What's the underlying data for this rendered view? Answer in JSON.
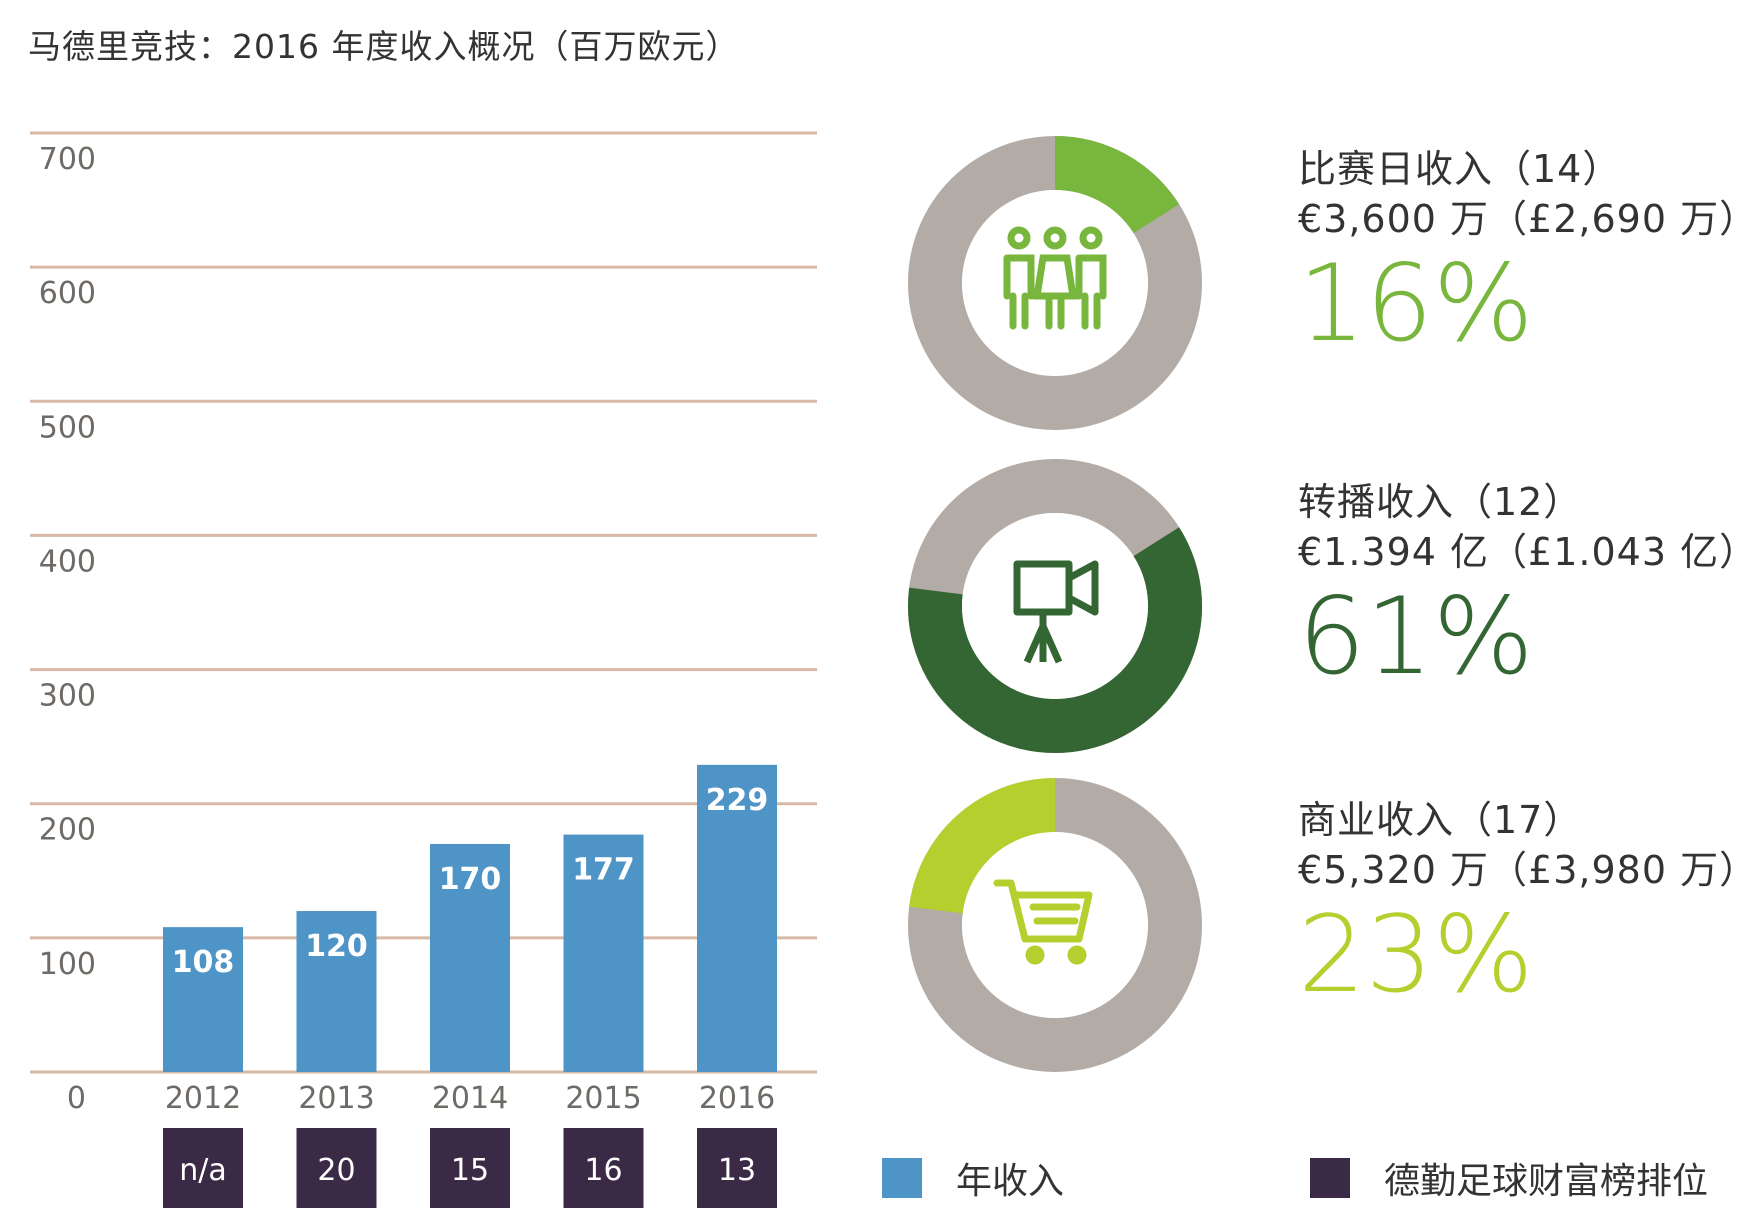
{
  "title": "马德里竞技：2016 年度收入概况（百万欧元）",
  "colors": {
    "bar": "#4f94c6",
    "rank_box": "#3b2a45",
    "grid": "#d7b9a5",
    "donut_rest": "#b3aba6",
    "matchday": "#78b63d",
    "broadcast": "#336633",
    "commercial": "#b5cf2e"
  },
  "chart_data": {
    "type": "bar",
    "title": "马德里竞技：2016 年度收入概况（百万欧元）",
    "categories": [
      "2012",
      "2013",
      "2014",
      "2015",
      "2016"
    ],
    "values": [
      108,
      120,
      170,
      177,
      229
    ],
    "ylim": [
      0,
      700
    ],
    "yticks": [
      "0",
      "100",
      "200",
      "300",
      "400",
      "500",
      "600",
      "700"
    ],
    "ranks": [
      "n/a",
      "20",
      "15",
      "16",
      "13"
    ],
    "grid": true,
    "legend_position": "bottom"
  },
  "legend": {
    "revenue": "年收入",
    "rank": "德勤足球财富榜排位"
  },
  "segments": [
    {
      "name": "比赛日收入（14）",
      "amount": "€3,600 万（£2,690 万）",
      "percent": "16%",
      "value": 16,
      "start": 0,
      "color": "#78b63d",
      "icon": "people-icon"
    },
    {
      "name": "转播收入（12）",
      "amount": "€1.394 亿（£1.043 亿）",
      "percent": "61%",
      "value": 61,
      "start": 16,
      "color": "#336633",
      "icon": "video-camera-icon"
    },
    {
      "name": "商业收入（17）",
      "amount": "€5,320 万（£3,980 万）",
      "percent": "23%",
      "value": 23,
      "start": 77,
      "color": "#b5cf2e",
      "icon": "shopping-cart-icon"
    }
  ]
}
